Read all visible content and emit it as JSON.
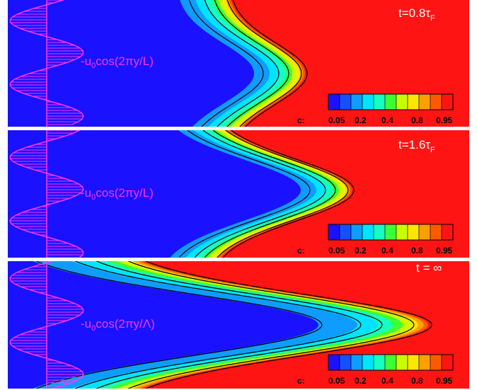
{
  "colors": {
    "unburned": "#1a12ff",
    "burned": "#ff1414",
    "contour": "#000000",
    "velocity_arrows": "#ff33ff",
    "background": "#ffffff",
    "colorbar_stops": [
      "#1a12ff",
      "#1450ff",
      "#0f9cff",
      "#00e4ff",
      "#15ffc2",
      "#3cff35",
      "#c8ff00",
      "#ffe600",
      "#ffa000",
      "#ff5a00",
      "#ff1414"
    ]
  },
  "panels": [
    {
      "time_label": "t=0.8τ",
      "time_label_sub": "F",
      "velocity_label": "-u",
      "velocity_label_sub": "0",
      "velocity_label_rest": "cos(2πy/L)",
      "colorbar_title": "c:",
      "colorbar_ticks": [
        "0.05",
        "0.2",
        "0.4",
        "0.8",
        "0.95"
      ]
    },
    {
      "time_label": "t=1.6τ",
      "time_label_sub": "F",
      "velocity_label": "-u",
      "velocity_label_sub": "0",
      "velocity_label_rest": "cos(2πy/L)",
      "colorbar_title": "c:",
      "colorbar_ticks": [
        "0.05",
        "0.2",
        "0.4",
        "0.8",
        "0.95"
      ]
    },
    {
      "time_label": "t = ∞",
      "time_label_sub": "",
      "velocity_label": "-u",
      "velocity_label_sub": "0",
      "velocity_label_rest": "cos(2πy/Λ)",
      "colorbar_title": "c:",
      "colorbar_ticks": [
        "0.05",
        "0.2",
        "0.4",
        "0.8",
        "0.95"
      ]
    }
  ]
}
